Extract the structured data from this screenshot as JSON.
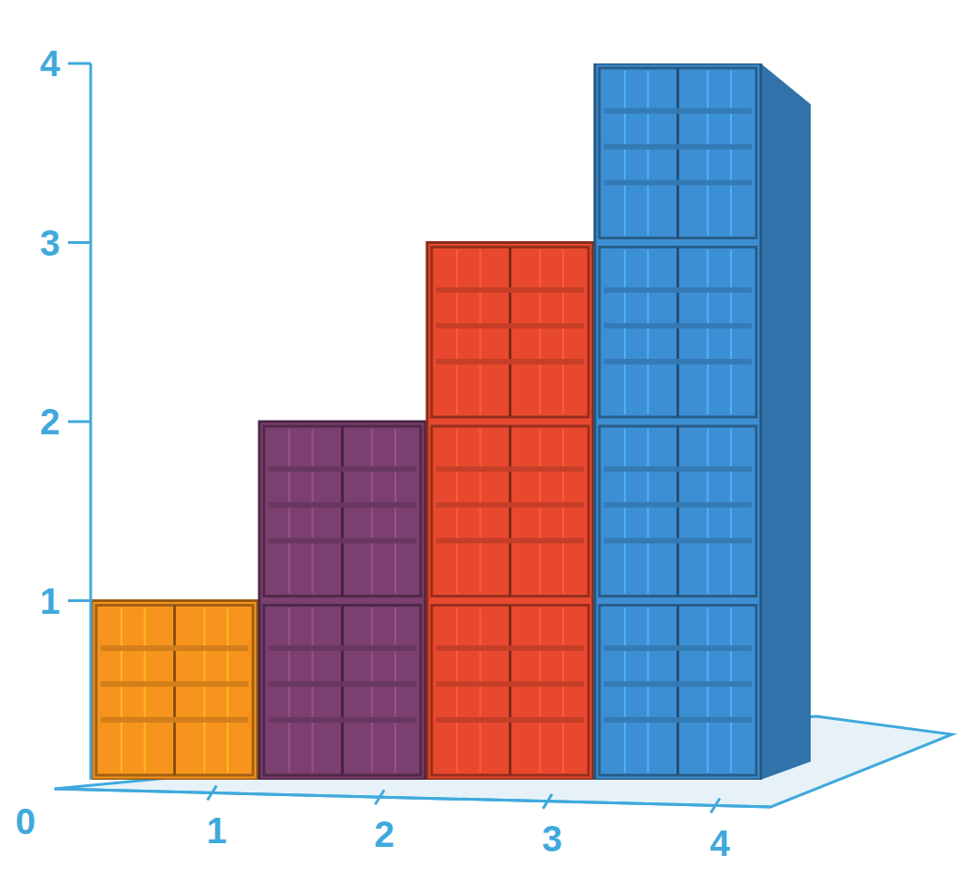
{
  "chart_data": {
    "type": "bar",
    "categories": [
      "1",
      "2",
      "3",
      "4"
    ],
    "values": [
      1,
      2,
      3,
      4
    ],
    "colors": [
      "#f7941d",
      "#7b3f70",
      "#e8492e",
      "#3d8fd4"
    ],
    "ylim": [
      0,
      4
    ],
    "yticks": [
      0,
      1,
      2,
      3,
      4
    ],
    "grid": false
  }
}
